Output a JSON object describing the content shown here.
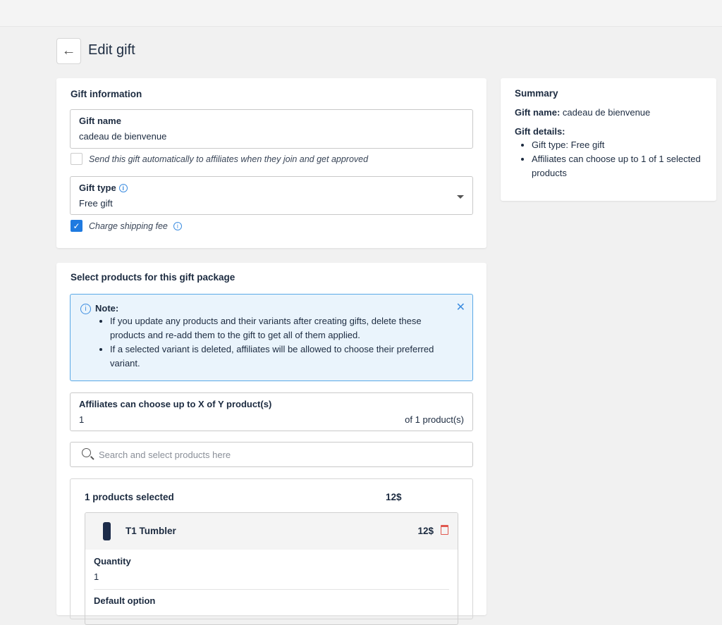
{
  "header": {
    "title": "Edit gift",
    "back_icon": "arrow-left-icon"
  },
  "gift_info": {
    "heading": "Gift information",
    "name_label": "Gift name",
    "name_value": "cadeau de bienvenue",
    "auto_send_label": "Send this gift automatically to affiliates when they join and get approved",
    "auto_send_checked": false,
    "type_label": "Gift type",
    "type_value": "Free gift",
    "shipping_label": "Charge shipping fee",
    "shipping_checked": true
  },
  "summary": {
    "heading": "Summary",
    "name_label": "Gift name:",
    "name_value": "cadeau de bienvenue",
    "details_label": "Gift details:",
    "details": [
      "Gift type: Free gift",
      "Affiliates can choose up to 1 of 1 selected products"
    ]
  },
  "products": {
    "heading": "Select products for this gift package",
    "note": {
      "title": "Note:",
      "items": [
        "If you update any products and their variants after creating gifts, delete these products and re-add them to the gift to get all of them applied.",
        "If a selected variant is deleted, affiliates will be allowed to choose their preferred variant."
      ]
    },
    "choose_label": "Affiliates can choose up to X of Y product(s)",
    "choose_value": "1",
    "choose_suffix": "of 1 product(s)",
    "search_placeholder": "Search and select products here",
    "selected_count": "1 products selected",
    "selected_total": "12$",
    "items": [
      {
        "name": "T1 Tumbler",
        "price": "12$",
        "quantity_label": "Quantity",
        "quantity": "1",
        "default_option_label": "Default option"
      }
    ]
  },
  "colors": {
    "accent": "#1f7ae0",
    "note_bg": "#eaf4fc",
    "note_border": "#5aa9e6",
    "delete": "#e0584f"
  }
}
